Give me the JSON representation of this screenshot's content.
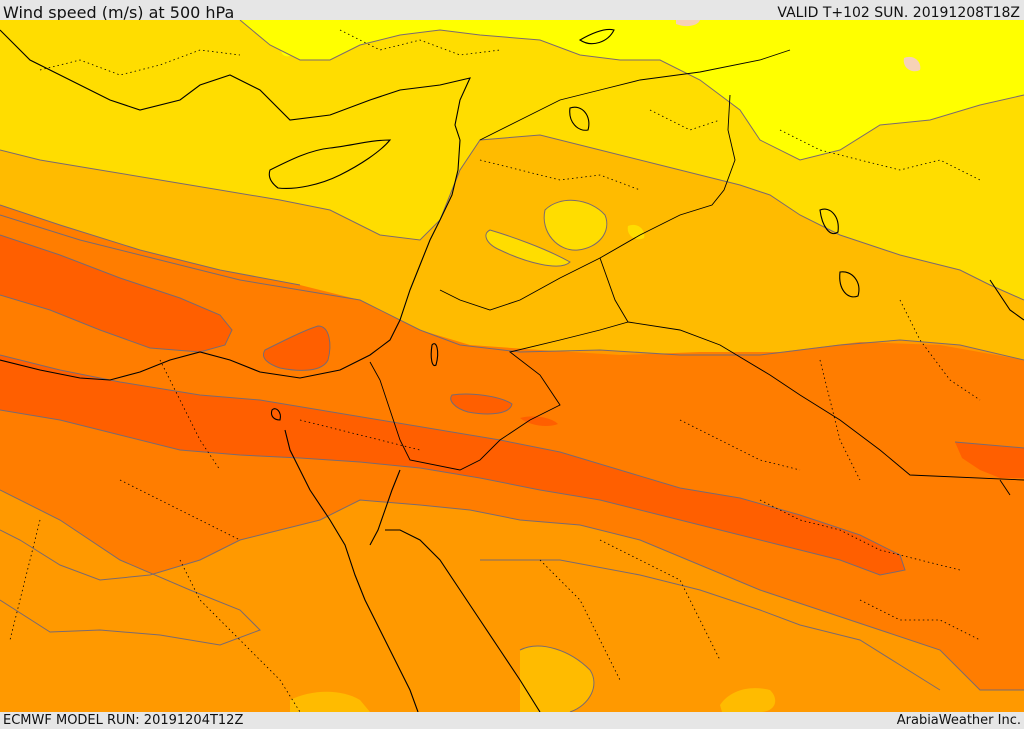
{
  "header": {
    "title": "Wind speed (m/s) at 500 hPa",
    "valid_time": "VALID T+102 SUN. 20191208T18Z"
  },
  "footer": {
    "model_run": "ECMWF MODEL RUN: 20191204T12Z",
    "credit": "ArabiaWeather Inc."
  },
  "map": {
    "fill_colors": {
      "band_1": "#ffff00",
      "band_2": "#ffdd00",
      "band_3": "#ffbb00",
      "band_4": "#ff9900",
      "band_5": "#ff7d00",
      "band_6": "#ff5f00",
      "band_7": "#f6d2b6"
    },
    "contour_color": "#7a6a70",
    "border_color": "#000000"
  }
}
